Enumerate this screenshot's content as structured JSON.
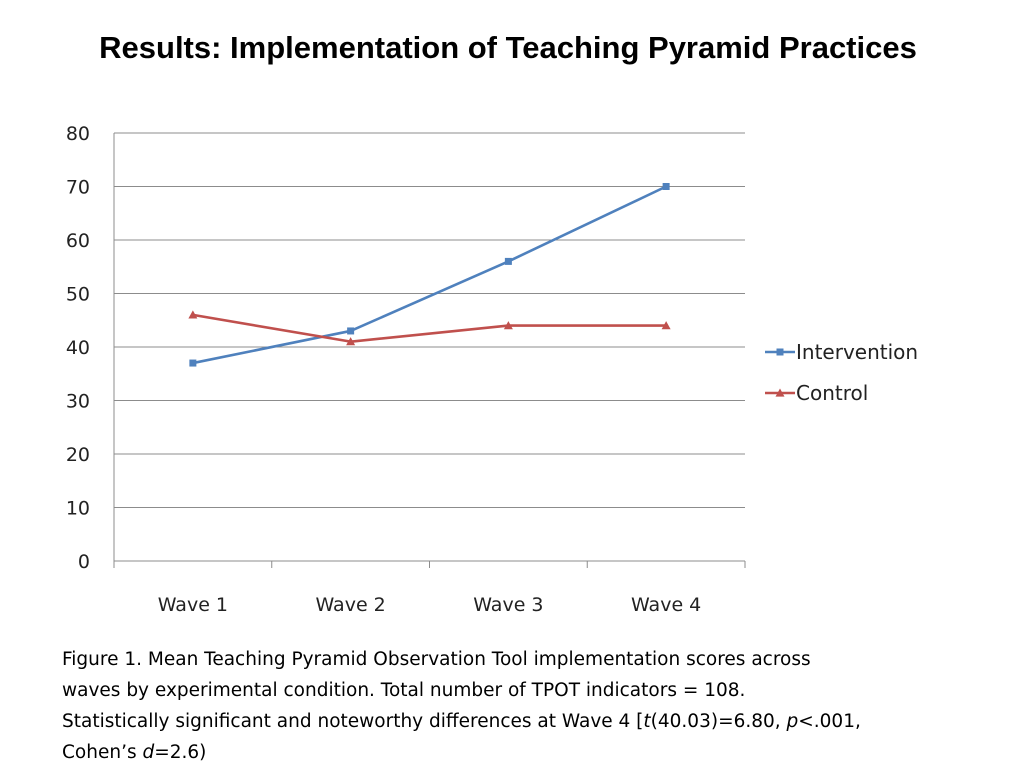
{
  "page": {
    "title": "Results: Implementation of Teaching Pyramid Practices"
  },
  "caption": {
    "line1": "Figure 1. Mean Teaching Pyramid Observation Tool implementation scores across",
    "line2": "waves by experimental condition. Total number of TPOT indicators = 108.",
    "line3_a": "Statistically significant and noteworthy differences at Wave 4 [",
    "line3_t": "t",
    "line3_b": "(40.03)=6.80, ",
    "line3_p": "p",
    "line3_c": "<.001,",
    "line4_a": "Cohen’s ",
    "line4_d": "d",
    "line4_b": "=2.6)"
  },
  "chart_data": {
    "type": "line",
    "categories": [
      "Wave 1",
      "Wave 2",
      "Wave 3",
      "Wave 4"
    ],
    "ylim": [
      0,
      80
    ],
    "yticks": [
      0,
      10,
      20,
      30,
      40,
      50,
      60,
      70,
      80
    ],
    "grid": true,
    "legend_position": "right",
    "series": [
      {
        "name": "Intervention",
        "values": [
          37,
          43,
          56,
          70
        ],
        "color": "#4f81bd",
        "marker": "square"
      },
      {
        "name": "Control",
        "values": [
          46,
          41,
          44,
          44
        ],
        "color": "#c0504d",
        "marker": "triangle"
      }
    ]
  }
}
